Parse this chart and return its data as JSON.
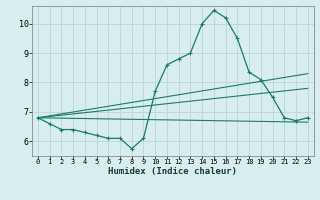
{
  "xlabel": "Humidex (Indice chaleur)",
  "bg_color": "#d8eeee",
  "grid_color": "#c0d8d8",
  "line_color": "#1a7a6a",
  "xlim": [
    -0.5,
    23.5
  ],
  "ylim": [
    5.5,
    10.6
  ],
  "yticks": [
    6,
    7,
    8,
    9,
    10
  ],
  "xticks": [
    0,
    1,
    2,
    3,
    4,
    5,
    6,
    7,
    8,
    9,
    10,
    11,
    12,
    13,
    14,
    15,
    16,
    17,
    18,
    19,
    20,
    21,
    22,
    23
  ],
  "xtick_labels": [
    "0",
    "1",
    "2",
    "3",
    "4",
    "5",
    "6",
    "7",
    "8",
    "9",
    "10",
    "11",
    "12",
    "13",
    "14",
    "15",
    "16",
    "17",
    "18",
    "19",
    "20",
    "21",
    "22",
    "23"
  ],
  "curve1_x": [
    0,
    1,
    2,
    3,
    4,
    5,
    6,
    7,
    8,
    9,
    10,
    11,
    12,
    13,
    14,
    15,
    16,
    17,
    18,
    19,
    20,
    21,
    22,
    23
  ],
  "curve1_y": [
    6.8,
    6.6,
    6.4,
    6.4,
    6.3,
    6.2,
    6.1,
    6.1,
    5.75,
    6.1,
    7.7,
    8.6,
    8.8,
    9.0,
    10.0,
    10.45,
    10.2,
    9.5,
    8.35,
    8.1,
    7.5,
    6.8,
    6.7,
    6.8
  ],
  "line1_x": [
    0,
    23
  ],
  "line1_y": [
    6.8,
    8.3
  ],
  "line2_x": [
    0,
    23
  ],
  "line2_y": [
    6.8,
    7.8
  ],
  "line3_x": [
    0,
    23
  ],
  "line3_y": [
    6.8,
    6.65
  ]
}
